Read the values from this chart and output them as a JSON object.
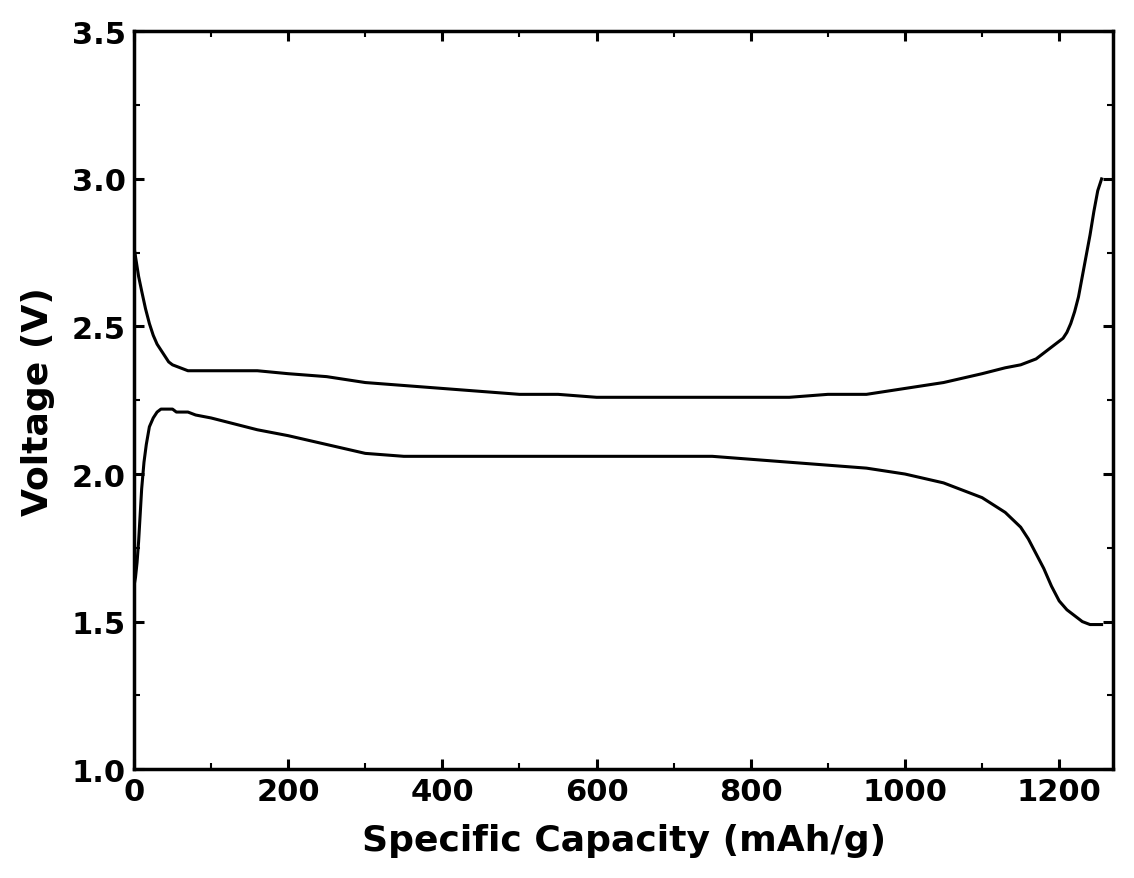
{
  "xlabel": "Specific Capacity (mAh/g)",
  "ylabel": "Voltage (V)",
  "xlim": [
    0,
    1270
  ],
  "ylim": [
    1.0,
    3.5
  ],
  "xticks": [
    0,
    200,
    400,
    600,
    800,
    1000,
    1200
  ],
  "yticks": [
    1.0,
    1.5,
    2.0,
    2.5,
    3.0,
    3.5
  ],
  "line_color": "#000000",
  "background_color": "#ffffff",
  "discharge_curve_x": [
    0,
    3,
    6,
    10,
    15,
    20,
    25,
    30,
    35,
    40,
    45,
    50,
    60,
    70,
    80,
    100,
    130,
    160,
    200,
    250,
    300,
    350,
    400,
    450,
    500,
    550,
    600,
    650,
    700,
    750,
    800,
    850,
    900,
    950,
    1000,
    1050,
    1100,
    1130,
    1150,
    1160,
    1170,
    1175,
    1180,
    1185,
    1190,
    1195,
    1200,
    1205,
    1210,
    1215,
    1220,
    1225,
    1230,
    1235,
    1240,
    1245,
    1250,
    1255
  ],
  "discharge_curve_y": [
    2.77,
    2.72,
    2.67,
    2.62,
    2.56,
    2.51,
    2.47,
    2.44,
    2.42,
    2.4,
    2.38,
    2.37,
    2.36,
    2.35,
    2.35,
    2.35,
    2.35,
    2.35,
    2.34,
    2.33,
    2.31,
    2.3,
    2.29,
    2.28,
    2.27,
    2.27,
    2.26,
    2.26,
    2.26,
    2.26,
    2.26,
    2.26,
    2.27,
    2.27,
    2.29,
    2.31,
    2.34,
    2.36,
    2.37,
    2.38,
    2.39,
    2.4,
    2.41,
    2.42,
    2.43,
    2.44,
    2.45,
    2.46,
    2.48,
    2.51,
    2.55,
    2.6,
    2.67,
    2.74,
    2.81,
    2.89,
    2.96,
    3.0
  ],
  "charge_curve_x": [
    0,
    2,
    4,
    6,
    8,
    10,
    13,
    16,
    20,
    25,
    30,
    35,
    40,
    45,
    50,
    55,
    60,
    70,
    80,
    100,
    130,
    160,
    200,
    250,
    300,
    350,
    400,
    450,
    500,
    550,
    600,
    650,
    700,
    750,
    800,
    850,
    900,
    950,
    1000,
    1050,
    1100,
    1130,
    1150,
    1160,
    1170,
    1180,
    1190,
    1200,
    1210,
    1220,
    1230,
    1240,
    1250,
    1255
  ],
  "charge_curve_y": [
    1.62,
    1.65,
    1.7,
    1.77,
    1.86,
    1.95,
    2.04,
    2.1,
    2.16,
    2.19,
    2.21,
    2.22,
    2.22,
    2.22,
    2.22,
    2.21,
    2.21,
    2.21,
    2.2,
    2.19,
    2.17,
    2.15,
    2.13,
    2.1,
    2.07,
    2.06,
    2.06,
    2.06,
    2.06,
    2.06,
    2.06,
    2.06,
    2.06,
    2.06,
    2.05,
    2.04,
    2.03,
    2.02,
    2.0,
    1.97,
    1.92,
    1.87,
    1.82,
    1.78,
    1.73,
    1.68,
    1.62,
    1.57,
    1.54,
    1.52,
    1.5,
    1.49,
    1.49,
    1.49
  ]
}
